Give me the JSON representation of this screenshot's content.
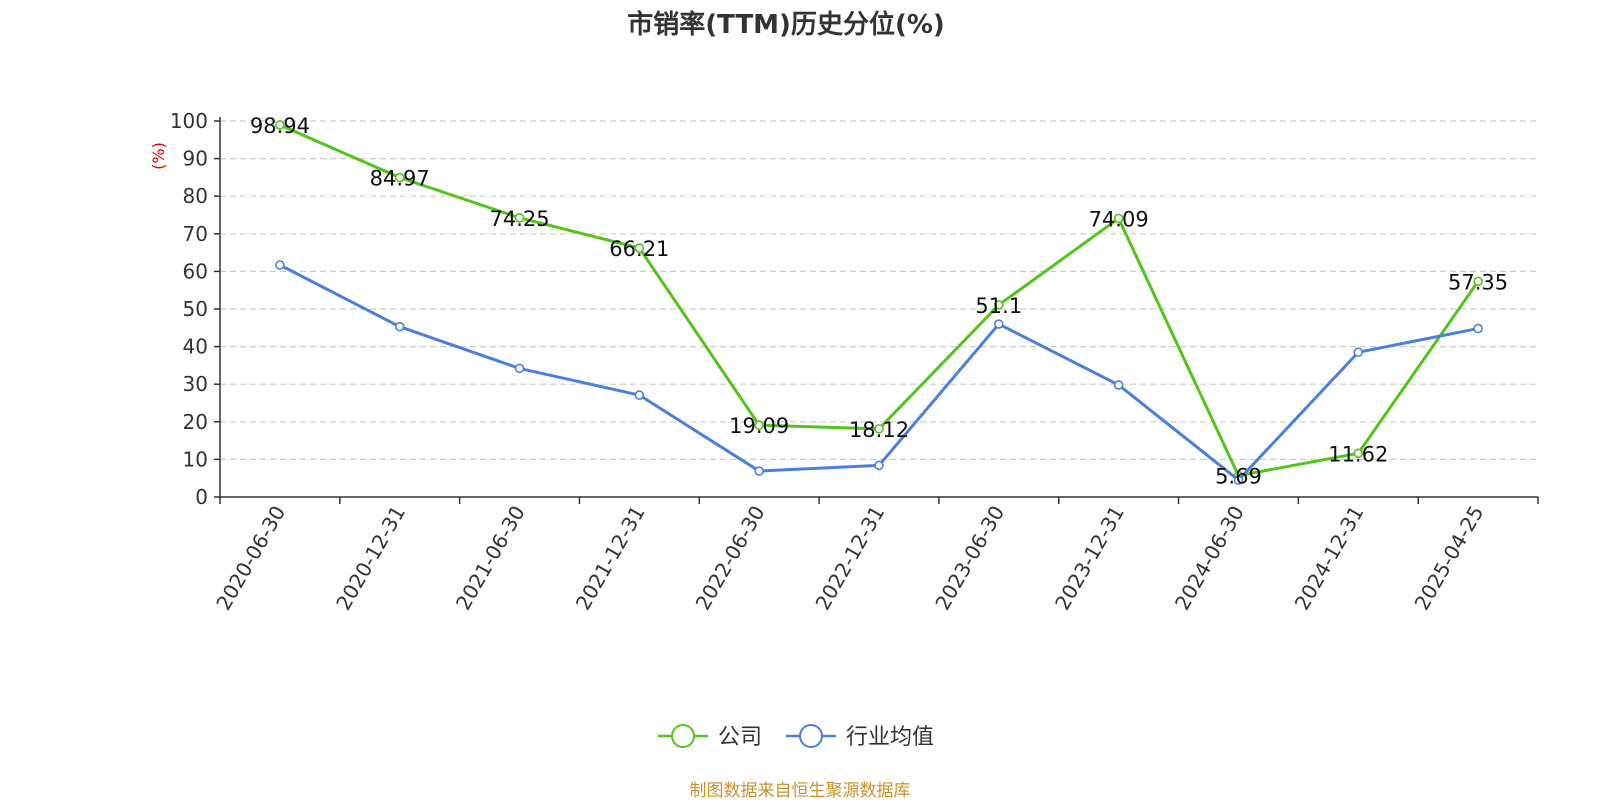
{
  "chart_data": {
    "type": "line",
    "title": "市销率(TTM)历史分位(%)",
    "ylabel": "(%)",
    "ylim": [
      0,
      100
    ],
    "yticks": [
      0,
      10,
      20,
      30,
      40,
      50,
      60,
      70,
      80,
      90,
      100
    ],
    "grid": true,
    "legend_position": "bottom-center",
    "x": [
      "2020-06-30",
      "2020-12-31",
      "2021-06-30",
      "2021-12-31",
      "2022-06-30",
      "2022-12-31",
      "2023-06-30",
      "2023-12-31",
      "2024-06-30",
      "2024-12-31",
      "2025-04-25"
    ],
    "series": [
      {
        "name": "公司",
        "color": "#52c41a",
        "values": [
          98.94,
          84.97,
          74.25,
          66.21,
          19.09,
          18.12,
          51.1,
          74.09,
          5.69,
          11.62,
          57.35
        ],
        "data_labels": [
          "98.94",
          "84.97",
          "74.25",
          "66.21",
          "19.09",
          "18.12",
          "51.1",
          "74.09",
          "5.69",
          "11.62",
          "57.35"
        ]
      },
      {
        "name": "行业均值",
        "color": "#4a7fdb",
        "values": [
          61.7,
          45.3,
          34.2,
          27.1,
          6.9,
          8.4,
          46.0,
          29.8,
          4.5,
          38.5,
          44.8
        ]
      }
    ],
    "source": "制图数据来自恒生聚源数据库",
    "colors": {
      "axis_label": "#e00000",
      "source": "#c9922a",
      "grid": "#cccccc",
      "axis": "#333333"
    }
  }
}
